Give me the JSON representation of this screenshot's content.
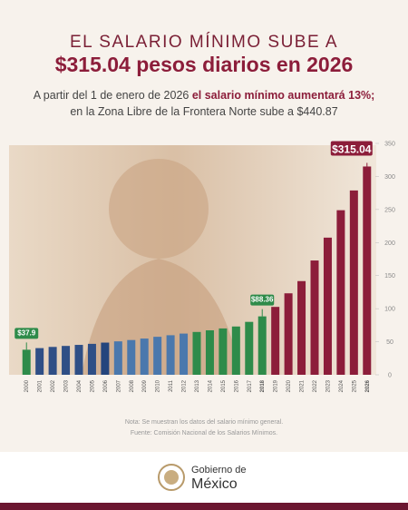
{
  "header": {
    "title_line1": "EL SALARIO MÍNIMO SUBE A",
    "title_line2": "$315.04 pesos diarios en 2026",
    "subtitle_plain": "A partir del 1 de enero de 2026",
    "subtitle_bold": "el salario mínimo aumentará 13%;",
    "subtitle_line2": "en la Zona Libre de la Frontera Norte sube a $440.87"
  },
  "chart_data": {
    "type": "bar",
    "categories": [
      "2000",
      "2001",
      "2002",
      "2003",
      "2004",
      "2005",
      "2006",
      "2007",
      "2008",
      "2009",
      "2010",
      "2011",
      "2012",
      "2013",
      "2014",
      "2015",
      "2016",
      "2017",
      "2018",
      "2019",
      "2020",
      "2021",
      "2022",
      "2023",
      "2024",
      "2025",
      "2026"
    ],
    "values": [
      37.9,
      40.35,
      42.15,
      43.65,
      45.24,
      46.8,
      48.67,
      50.57,
      52.59,
      54.8,
      57.46,
      59.82,
      62.33,
      64.76,
      67.29,
      70.1,
      73.04,
      80.04,
      88.36,
      102.68,
      123.22,
      141.7,
      172.87,
      207.44,
      248.93,
      278.8,
      315.04
    ],
    "value_labels": [
      "$37.9",
      null,
      null,
      null,
      null,
      null,
      null,
      null,
      null,
      null,
      null,
      null,
      null,
      null,
      null,
      null,
      null,
      null,
      "$88.36",
      null,
      null,
      null,
      null,
      null,
      null,
      null,
      "$315.04"
    ],
    "colors": [
      "#2e8b4a",
      "#2f4f86",
      "#2f4f86",
      "#2f4f86",
      "#2f4f86",
      "#2f4f86",
      "#24457d",
      "#4a78ad",
      "#4a78ad",
      "#4a78ad",
      "#4a78ad",
      "#4a78ad",
      "#4a78ad",
      "#2e8b4a",
      "#2e8b4a",
      "#2e8b4a",
      "#2e8b4a",
      "#2e8b4a",
      "#2e8b4a",
      "#8c1d3a",
      "#8c1d3a",
      "#8c1d3a",
      "#8c1d3a",
      "#8c1d3a",
      "#8c1d3a",
      "#8c1d3a",
      "#8c1d3a"
    ],
    "ylim": [
      0,
      350
    ],
    "yticks": [
      0,
      50,
      100,
      150,
      200,
      250,
      300,
      350
    ]
  },
  "notes": [
    "Nota: Se muestran los datos del salario mínimo general.",
    "Fuente: Comisión Nacional de los Salarios Mínimos."
  ],
  "footer": {
    "logo_line1": "Gobierno de",
    "logo_line2": "México"
  }
}
